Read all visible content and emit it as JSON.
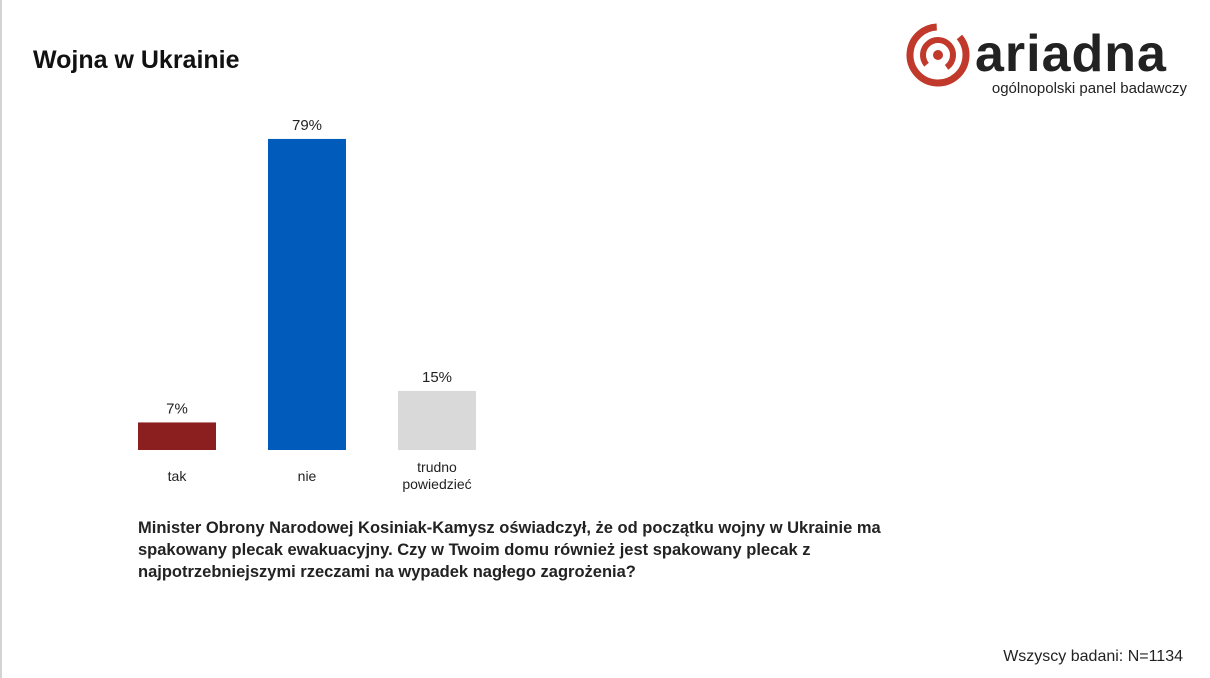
{
  "page": {
    "title": "Wojna w Ukrainie",
    "question": "Minister Obrony Narodowej Kosiniak-Kamysz oświadczył, że od początku wojny w Ukrainie ma spakowany plecak ewakuacyjny. Czy w Twoim domu również jest spakowany plecak z najpotrzebniejszymi rzeczami na wypadek nagłego zagrożenia?",
    "base_note": "Wszyscy badani: N=1134"
  },
  "logo": {
    "wordmark": "ariadna",
    "tagline": "ogólnopolski panel badawczy",
    "icon": "ariadna-swirl-icon",
    "color": "#c0392b"
  },
  "chart_data": {
    "type": "bar",
    "categories": [
      "tak",
      "nie",
      "trudno powiedzieć"
    ],
    "category_lines": [
      [
        "tak"
      ],
      [
        "nie"
      ],
      [
        "trudno",
        "powiedzieć"
      ]
    ],
    "values": [
      7,
      79,
      15
    ],
    "value_labels": [
      "7%",
      "79%",
      "15%"
    ],
    "colors": [
      "#8b1e1e",
      "#005bbb",
      "#d9d9d9"
    ],
    "title": "",
    "xlabel": "",
    "ylabel": "",
    "ylim": [
      0,
      80
    ],
    "grid": false,
    "legend": "none"
  }
}
